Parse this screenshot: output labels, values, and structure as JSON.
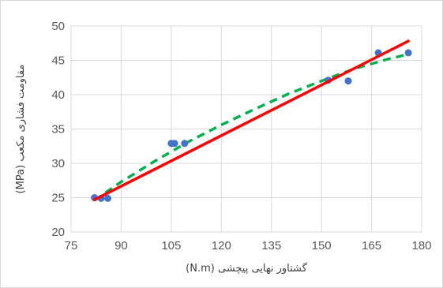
{
  "chart_data": {
    "type": "scatter",
    "title": "",
    "xlabel": "گشتاور نهایی پیچشی (N.m)",
    "ylabel": "مقاومت فشاری مکعب (MPa)",
    "xlim": [
      75,
      180
    ],
    "ylim": [
      20,
      50
    ],
    "xticks": [
      75,
      90,
      105,
      120,
      135,
      150,
      165,
      180
    ],
    "yticks": [
      20,
      25,
      30,
      35,
      40,
      45,
      50
    ],
    "grid": true,
    "legend": "none",
    "series": [
      {
        "kind": "points",
        "color": "#4472C4",
        "points": [
          {
            "x": 82,
            "y": 25.0
          },
          {
            "x": 84,
            "y": 24.9
          },
          {
            "x": 86,
            "y": 24.9
          },
          {
            "x": 105,
            "y": 32.9
          },
          {
            "x": 106,
            "y": 32.9
          },
          {
            "x": 109,
            "y": 32.9
          },
          {
            "x": 152,
            "y": 42.1
          },
          {
            "x": 158,
            "y": 42.0
          },
          {
            "x": 167,
            "y": 46.1
          },
          {
            "x": 176,
            "y": 46.1
          }
        ]
      },
      {
        "kind": "trend",
        "style": "solid",
        "color": "#FF0000",
        "points": [
          {
            "x": 82,
            "y": 24.7
          },
          {
            "x": 176,
            "y": 47.8
          }
        ]
      },
      {
        "kind": "trend",
        "style": "dashed",
        "color": "#00B050",
        "points": [
          {
            "x": 82,
            "y": 24.6
          },
          {
            "x": 90,
            "y": 27.3
          },
          {
            "x": 100,
            "y": 30.3
          },
          {
            "x": 110,
            "y": 33.1
          },
          {
            "x": 120,
            "y": 35.6
          },
          {
            "x": 130,
            "y": 37.9
          },
          {
            "x": 140,
            "y": 40.1
          },
          {
            "x": 150,
            "y": 42.0
          },
          {
            "x": 160,
            "y": 43.8
          },
          {
            "x": 170,
            "y": 45.2
          },
          {
            "x": 176,
            "y": 45.9
          }
        ]
      }
    ]
  }
}
